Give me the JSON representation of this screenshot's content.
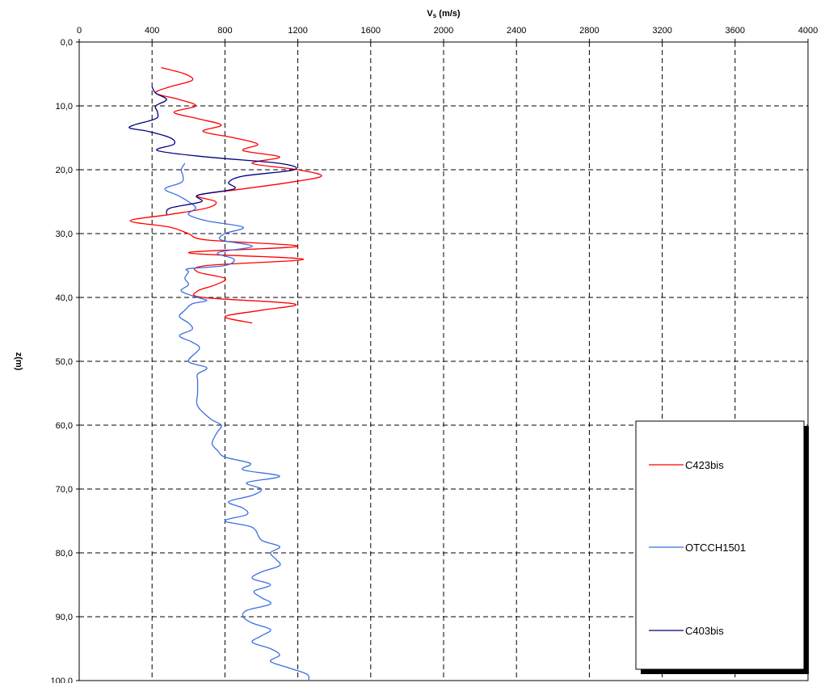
{
  "chart_data": {
    "type": "line",
    "xlabel_main": "V",
    "xlabel_sub": "s",
    "xlabel_rest": " (m/s)",
    "ylabel": "z(m)",
    "xlim": [
      0,
      4000
    ],
    "ylim": [
      0,
      100
    ],
    "x_ticks": [
      "0",
      "400",
      "800",
      "1200",
      "1600",
      "2000",
      "2400",
      "2800",
      "3200",
      "3600",
      "4000"
    ],
    "y_ticks": [
      "0,0",
      "10,0",
      "20,0",
      "30,0",
      "40,0",
      "50,0",
      "60,0",
      "70,0",
      "80,0",
      "90,0",
      "100,0"
    ],
    "grid": true,
    "y_inverted": true,
    "x_axis_position": "top",
    "legend_position": "right",
    "series": [
      {
        "name": "C423bis",
        "color": "#ff0000",
        "points": [
          [
            450,
            4
          ],
          [
            580,
            5
          ],
          [
            620,
            6
          ],
          [
            500,
            7
          ],
          [
            420,
            8
          ],
          [
            550,
            9
          ],
          [
            640,
            10
          ],
          [
            520,
            11
          ],
          [
            650,
            12
          ],
          [
            780,
            13
          ],
          [
            680,
            14
          ],
          [
            850,
            15
          ],
          [
            980,
            16
          ],
          [
            900,
            17
          ],
          [
            1100,
            18
          ],
          [
            950,
            19
          ],
          [
            1200,
            20
          ],
          [
            1330,
            21
          ],
          [
            1150,
            22
          ],
          [
            900,
            23
          ],
          [
            650,
            24
          ],
          [
            750,
            25
          ],
          [
            700,
            26
          ],
          [
            500,
            27
          ],
          [
            280,
            28
          ],
          [
            500,
            29
          ],
          [
            600,
            30
          ],
          [
            700,
            31
          ],
          [
            1200,
            32
          ],
          [
            600,
            33
          ],
          [
            1230,
            34
          ],
          [
            700,
            35
          ],
          [
            650,
            36
          ],
          [
            800,
            37
          ],
          [
            750,
            38
          ],
          [
            650,
            39
          ],
          [
            680,
            40
          ],
          [
            1180,
            41
          ],
          [
            1000,
            42
          ],
          [
            800,
            43
          ],
          [
            950,
            44
          ]
        ]
      },
      {
        "name": "OTCCH1501",
        "color": "#3b6fe0",
        "points": [
          [
            580,
            19
          ],
          [
            560,
            20
          ],
          [
            570,
            21
          ],
          [
            560,
            22
          ],
          [
            470,
            23
          ],
          [
            540,
            24
          ],
          [
            600,
            25
          ],
          [
            640,
            26
          ],
          [
            600,
            27
          ],
          [
            700,
            28
          ],
          [
            900,
            29
          ],
          [
            800,
            30
          ],
          [
            780,
            31
          ],
          [
            950,
            32
          ],
          [
            760,
            33
          ],
          [
            850,
            34
          ],
          [
            800,
            35
          ],
          [
            600,
            35.5
          ],
          [
            600,
            36
          ],
          [
            580,
            37
          ],
          [
            600,
            38
          ],
          [
            560,
            39
          ],
          [
            650,
            40
          ],
          [
            700,
            40.5
          ],
          [
            620,
            41
          ],
          [
            580,
            42
          ],
          [
            550,
            43
          ],
          [
            600,
            44
          ],
          [
            620,
            45
          ],
          [
            550,
            46
          ],
          [
            620,
            47
          ],
          [
            660,
            48
          ],
          [
            600,
            50
          ],
          [
            700,
            51
          ],
          [
            650,
            52
          ],
          [
            650,
            53
          ],
          [
            650,
            55
          ],
          [
            650,
            57
          ],
          [
            720,
            59
          ],
          [
            780,
            60
          ],
          [
            760,
            61
          ],
          [
            740,
            62
          ],
          [
            730,
            63
          ],
          [
            760,
            64
          ],
          [
            800,
            65
          ],
          [
            940,
            66
          ],
          [
            900,
            67
          ],
          [
            1100,
            68
          ],
          [
            920,
            69
          ],
          [
            1000,
            70
          ],
          [
            950,
            71
          ],
          [
            820,
            72
          ],
          [
            900,
            73
          ],
          [
            920,
            74
          ],
          [
            800,
            75
          ],
          [
            950,
            76
          ],
          [
            1000,
            78
          ],
          [
            1100,
            79
          ],
          [
            1050,
            80
          ],
          [
            1080,
            81
          ],
          [
            1100,
            82
          ],
          [
            1000,
            83
          ],
          [
            950,
            84
          ],
          [
            1050,
            85
          ],
          [
            960,
            86
          ],
          [
            1000,
            87
          ],
          [
            1050,
            88
          ],
          [
            920,
            89
          ],
          [
            900,
            90
          ],
          [
            950,
            91
          ],
          [
            1050,
            92
          ],
          [
            1000,
            93
          ],
          [
            950,
            94
          ],
          [
            1050,
            95
          ],
          [
            1100,
            96
          ],
          [
            1050,
            97
          ],
          [
            1150,
            98
          ],
          [
            1250,
            99
          ],
          [
            1260,
            100
          ]
        ]
      },
      {
        "name": "C403bis",
        "color": "#000080",
        "points": [
          [
            400,
            7
          ],
          [
            420,
            8
          ],
          [
            480,
            9
          ],
          [
            420,
            10
          ],
          [
            430,
            11
          ],
          [
            420,
            12
          ],
          [
            300,
            13
          ],
          [
            280,
            13.5
          ],
          [
            380,
            14
          ],
          [
            500,
            15
          ],
          [
            520,
            16
          ],
          [
            430,
            17
          ],
          [
            700,
            18
          ],
          [
            1100,
            19
          ],
          [
            1180,
            20
          ],
          [
            900,
            21
          ],
          [
            820,
            22
          ],
          [
            850,
            23
          ],
          [
            650,
            24
          ],
          [
            670,
            25
          ],
          [
            500,
            26
          ],
          [
            480,
            27
          ]
        ]
      }
    ]
  }
}
